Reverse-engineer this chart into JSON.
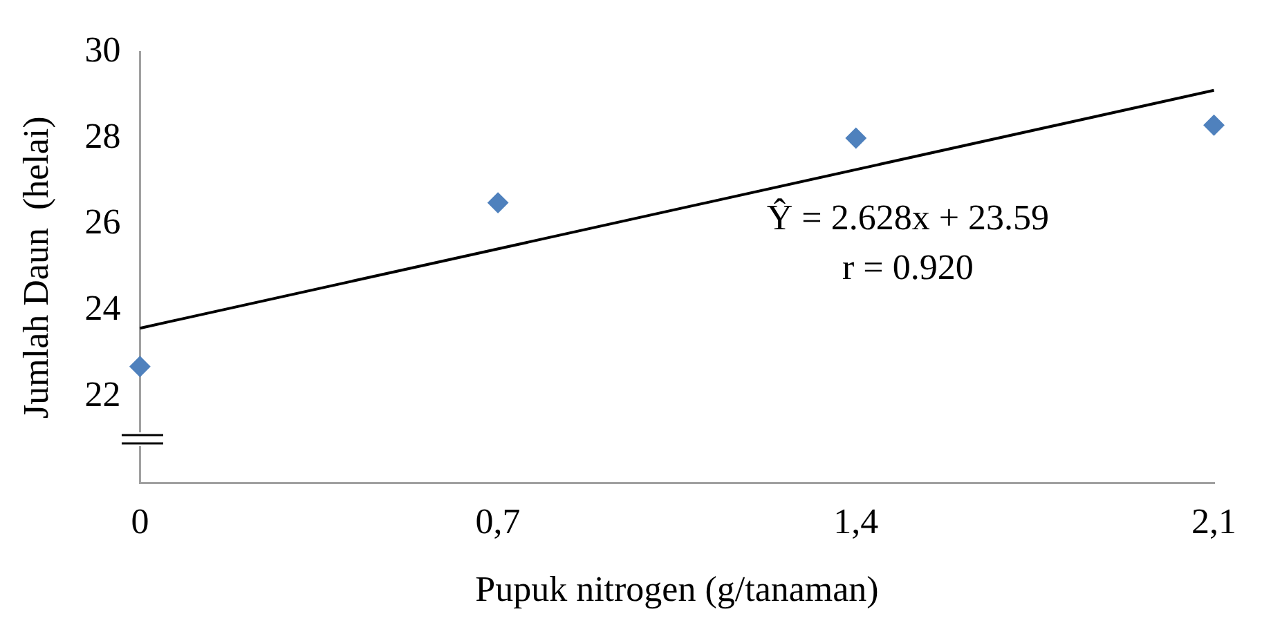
{
  "chart_data": {
    "type": "scatter",
    "xlabel": "Pupuk nitrogen (g/tanaman)",
    "ylabel": "Jumlah Daun  (helai)",
    "series": [
      {
        "type": "scatter",
        "x": [
          0,
          0.7,
          1.4,
          2.1
        ],
        "values": [
          22.7,
          26.5,
          28.0,
          28.3
        ],
        "color": "#4f81bd",
        "marker": "diamond"
      },
      {
        "type": "line",
        "x": [
          0,
          2.1
        ],
        "values": [
          23.59,
          29.11
        ],
        "color": "#000000",
        "marker": "none",
        "line_style": "solid"
      }
    ],
    "xlim": [
      0,
      2.1
    ],
    "xticks": [
      0,
      {
        "value": 0.7,
        "label": "0,7"
      },
      {
        "value": 1.4,
        "label": "1,4"
      },
      {
        "value": 2.1,
        "label": "2,1"
      }
    ],
    "ylim": [
      20,
      30
    ],
    "yticks": [
      22,
      24,
      26,
      28,
      30
    ],
    "grid": false,
    "legend": false,
    "annotations": [
      "Ŷ = 2.628x + 23.59",
      "r = 0.920"
    ]
  }
}
